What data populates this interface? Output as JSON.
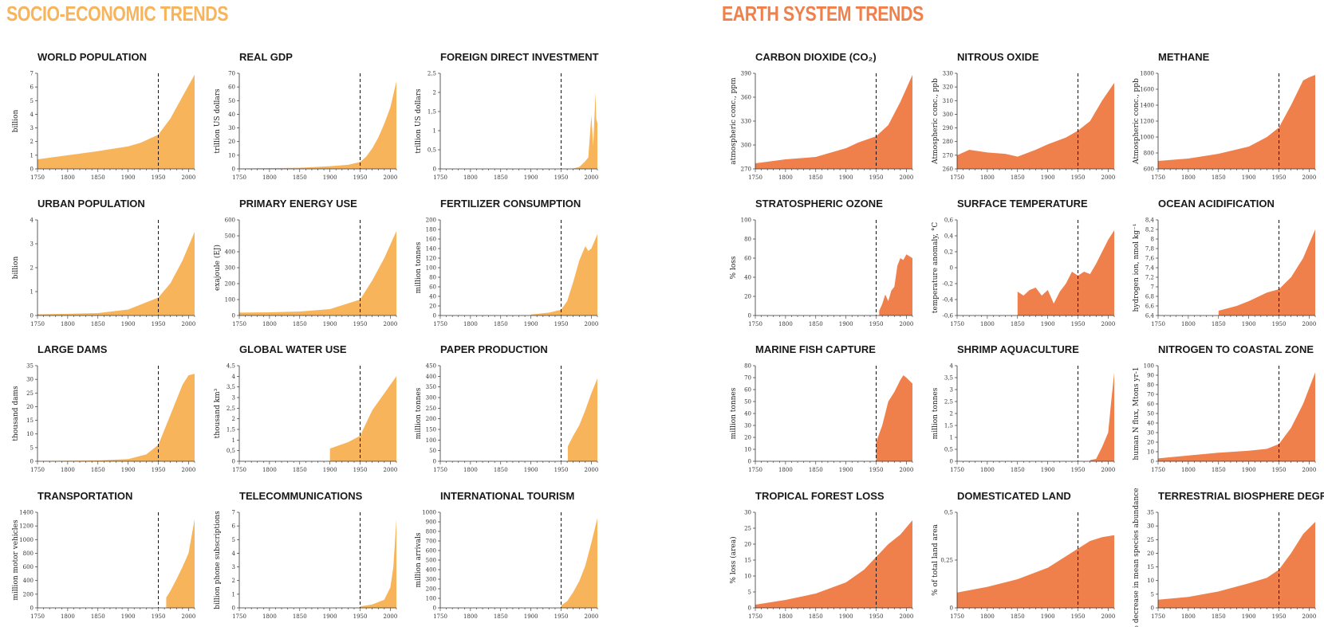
{
  "sections": {
    "socio": {
      "title": "SOCIO-ECONOMIC TRENDS",
      "color": "#F7B45A"
    },
    "earth": {
      "title": "EARTH SYSTEM TRENDS",
      "color": "#F0804B"
    }
  },
  "chart_data": [
    {
      "id": "world-population",
      "type": "area",
      "title": "WORLD POPULATION",
      "ylabel": "billion",
      "section": "socio",
      "ylim": [
        0,
        7
      ],
      "yticks": [
        "0",
        "1",
        "2",
        "3",
        "4",
        "5",
        "6",
        "7"
      ],
      "xticks": [
        1750,
        1800,
        1850,
        1900,
        1950,
        2000
      ],
      "xlim": [
        1750,
        2010
      ],
      "marker_x": 1950,
      "x": [
        1750,
        1800,
        1850,
        1900,
        1920,
        1950,
        1970,
        1990,
        2010
      ],
      "y": [
        0.7,
        1.0,
        1.3,
        1.65,
        1.9,
        2.5,
        3.7,
        5.3,
        6.9
      ]
    },
    {
      "id": "real-gdp",
      "type": "area",
      "title": "REAL GDP",
      "ylabel": "trillion US dollars",
      "section": "socio",
      "ylim": [
        0,
        70
      ],
      "yticks": [
        "0",
        "10",
        "20",
        "30",
        "40",
        "50",
        "60",
        "70"
      ],
      "xticks": [
        1750,
        1800,
        1850,
        1900,
        1950,
        2000
      ],
      "xlim": [
        1750,
        2010
      ],
      "marker_x": 1950,
      "x": [
        1750,
        1850,
        1900,
        1930,
        1950,
        1960,
        1970,
        1980,
        1990,
        2000,
        2010
      ],
      "y": [
        0.3,
        0.8,
        2,
        3,
        5,
        9,
        15,
        23,
        33,
        45,
        64
      ]
    },
    {
      "id": "foreign-direct-investment",
      "type": "area",
      "title": "FOREIGN DIRECT INVESTMENT",
      "ylabel": "trillion US dollars",
      "section": "socio",
      "ylim": [
        0,
        2.5
      ],
      "yticks": [
        "0",
        "0,5",
        "1",
        "1,5",
        "2",
        "2,5"
      ],
      "xticks": [
        1750,
        1800,
        1850,
        1900,
        1950,
        2000
      ],
      "xlim": [
        1750,
        2010
      ],
      "marker_x": 1950,
      "x": [
        1970,
        1980,
        1990,
        1995,
        2000,
        2003,
        2007,
        2008,
        2010
      ],
      "y": [
        0.01,
        0.05,
        0.2,
        0.3,
        1.4,
        0.6,
        2.0,
        1.3,
        1.2
      ]
    },
    {
      "id": "urban-population",
      "type": "area",
      "title": "URBAN POPULATION",
      "ylabel": "billion",
      "section": "socio",
      "ylim": [
        0,
        4
      ],
      "yticks": [
        "0",
        "1",
        "2",
        "3",
        "4"
      ],
      "xticks": [
        1750,
        1800,
        1850,
        1900,
        1950,
        2000
      ],
      "xlim": [
        1750,
        2010
      ],
      "marker_x": 1950,
      "x": [
        1750,
        1800,
        1850,
        1900,
        1950,
        1970,
        1990,
        2010
      ],
      "y": [
        0.05,
        0.07,
        0.1,
        0.25,
        0.75,
        1.35,
        2.3,
        3.5
      ]
    },
    {
      "id": "primary-energy-use",
      "type": "area",
      "title": "PRIMARY ENERGY USE",
      "ylabel": "exajoule (EJ)",
      "section": "socio",
      "ylim": [
        0,
        600
      ],
      "yticks": [
        "0",
        "100",
        "200",
        "300",
        "400",
        "500",
        "600"
      ],
      "xticks": [
        1750,
        1800,
        1850,
        1900,
        1950,
        2000
      ],
      "xlim": [
        1750,
        2010
      ],
      "marker_x": 1950,
      "x": [
        1750,
        1800,
        1850,
        1900,
        1950,
        1970,
        1990,
        2010
      ],
      "y": [
        18,
        20,
        25,
        40,
        100,
        220,
        360,
        530
      ]
    },
    {
      "id": "fertilizer-consumption",
      "type": "area",
      "title": "FERTILIZER CONSUMPTION",
      "ylabel": "million tonnes",
      "section": "socio",
      "ylim": [
        0,
        200
      ],
      "yticks": [
        "0",
        "20",
        "40",
        "60",
        "80",
        "100",
        "120",
        "140",
        "160",
        "180",
        "200"
      ],
      "xticks": [
        1750,
        1800,
        1850,
        1900,
        1950,
        2000
      ],
      "xlim": [
        1750,
        2010
      ],
      "marker_x": 1950,
      "x": [
        1900,
        1930,
        1950,
        1960,
        1970,
        1980,
        1990,
        1995,
        2000,
        2010
      ],
      "y": [
        2,
        6,
        12,
        30,
        70,
        115,
        145,
        135,
        140,
        170
      ]
    },
    {
      "id": "large-dams",
      "type": "area",
      "title": "LARGE DAMS",
      "ylabel": "thousand dams",
      "section": "socio",
      "ylim": [
        0,
        35
      ],
      "yticks": [
        "0",
        "5",
        "10",
        "15",
        "20",
        "25",
        "30",
        "35"
      ],
      "xticks": [
        1750,
        1800,
        1850,
        1900,
        1950,
        2000
      ],
      "xlim": [
        1750,
        2010
      ],
      "marker_x": 1950,
      "x": [
        1750,
        1850,
        1900,
        1930,
        1950,
        1970,
        1990,
        2000,
        2010
      ],
      "y": [
        0.1,
        0.3,
        0.8,
        2.5,
        6,
        17,
        28,
        31.5,
        32
      ]
    },
    {
      "id": "global-water-use",
      "type": "area",
      "title": "GLOBAL WATER USE",
      "ylabel": "thousand km³",
      "section": "socio",
      "ylim": [
        0,
        4.5
      ],
      "yticks": [
        "0",
        "0,5",
        "1",
        "1,5",
        "2",
        "2,5",
        "3",
        "3,5",
        "4",
        "4,5"
      ],
      "xticks": [
        1750,
        1800,
        1850,
        1900,
        1950,
        2000
      ],
      "xlim": [
        1750,
        2010
      ],
      "marker_x": 1950,
      "x": [
        1900,
        1930,
        1950,
        1970,
        1990,
        2010
      ],
      "y": [
        0.6,
        0.9,
        1.2,
        2.4,
        3.2,
        4.0
      ]
    },
    {
      "id": "paper-production",
      "type": "area",
      "title": "PAPER PRODUCTION",
      "ylabel": "million tonnes",
      "section": "socio",
      "ylim": [
        0,
        450
      ],
      "yticks": [
        "0",
        "50",
        "100",
        "150",
        "200",
        "250",
        "300",
        "350",
        "400",
        "450"
      ],
      "xticks": [
        1750,
        1800,
        1850,
        1900,
        1950,
        2000
      ],
      "xlim": [
        1750,
        2010
      ],
      "marker_x": 1950,
      "x": [
        1961,
        1970,
        1980,
        1990,
        2000,
        2010
      ],
      "y": [
        70,
        120,
        170,
        240,
        320,
        390
      ]
    },
    {
      "id": "transportation",
      "type": "area",
      "title": "TRANSPORTATION",
      "ylabel": "million motor vehicles",
      "section": "socio",
      "ylim": [
        0,
        1400
      ],
      "yticks": [
        "0",
        "200",
        "400",
        "600",
        "800",
        "1000",
        "1200",
        "1400"
      ],
      "xticks": [
        1750,
        1800,
        1850,
        1900,
        1950,
        2000
      ],
      "xlim": [
        1750,
        2010
      ],
      "marker_x": 1950,
      "x": [
        1963,
        1970,
        1980,
        1990,
        2000,
        2010
      ],
      "y": [
        150,
        250,
        420,
        600,
        800,
        1300
      ]
    },
    {
      "id": "telecommunications",
      "type": "area",
      "title": "TELECOMMUNICATIONS",
      "ylabel": "billion phone subscriptions",
      "section": "socio",
      "ylim": [
        0,
        7
      ],
      "yticks": [
        "0",
        "1",
        "2",
        "3",
        "4",
        "5",
        "6",
        "7"
      ],
      "xticks": [
        1750,
        1800,
        1850,
        1900,
        1950,
        2000
      ],
      "xlim": [
        1750,
        2010
      ],
      "marker_x": 1950,
      "x": [
        1950,
        1970,
        1990,
        2000,
        2005,
        2010
      ],
      "y": [
        0.1,
        0.25,
        0.6,
        1.5,
        3.0,
        6.5
      ]
    },
    {
      "id": "international-tourism",
      "type": "area",
      "title": "INTERNATIONAL TOURISM",
      "ylabel": "million arrivals",
      "section": "socio",
      "ylim": [
        0,
        1000
      ],
      "yticks": [
        "0",
        "100",
        "200",
        "300",
        "400",
        "500",
        "600",
        "700",
        "800",
        "900",
        "1000"
      ],
      "xticks": [
        1750,
        1800,
        1850,
        1900,
        1950,
        2000
      ],
      "xlim": [
        1750,
        2010
      ],
      "marker_x": 1950,
      "x": [
        1950,
        1960,
        1970,
        1980,
        1990,
        2000,
        2010
      ],
      "y": [
        25,
        70,
        165,
        280,
        440,
        680,
        940
      ]
    },
    {
      "id": "carbon-dioxide",
      "type": "area",
      "title": "CARBON DIOXIDE (CO₂)",
      "ylabel": "atmospheric conc., ppm",
      "section": "earth",
      "ylim": [
        270,
        390
      ],
      "yticks": [
        "270",
        "300",
        "330",
        "360",
        "390"
      ],
      "xticks": [
        1750,
        1800,
        1850,
        1900,
        1950,
        2000
      ],
      "xlim": [
        1750,
        2010
      ],
      "marker_x": 1950,
      "x": [
        1750,
        1800,
        1850,
        1900,
        1920,
        1950,
        1970,
        1990,
        2010
      ],
      "y": [
        277,
        282,
        285,
        296,
        303,
        311,
        325,
        354,
        388
      ]
    },
    {
      "id": "nitrous-oxide",
      "type": "area",
      "title": "NITROUS OXIDE",
      "ylabel": "Atmospheric conc., ppb",
      "section": "earth",
      "ylim": [
        260,
        330
      ],
      "yticks": [
        "260",
        "270",
        "280",
        "290",
        "300",
        "310",
        "320",
        "330"
      ],
      "xticks": [
        1750,
        1800,
        1850,
        1900,
        1950,
        2000
      ],
      "xlim": [
        1750,
        2010
      ],
      "marker_x": 1950,
      "x": [
        1750,
        1770,
        1800,
        1830,
        1850,
        1880,
        1900,
        1930,
        1950,
        1970,
        1990,
        2010
      ],
      "y": [
        270,
        274,
        272,
        271,
        269,
        274,
        278,
        283,
        288,
        295,
        310,
        323
      ]
    },
    {
      "id": "methane",
      "type": "area",
      "title": "METHANE",
      "ylabel": "Atmospheric conc., ppb",
      "section": "earth",
      "ylim": [
        600,
        1800
      ],
      "yticks": [
        "600",
        "800",
        "1000",
        "1200",
        "1400",
        "1600",
        "1800"
      ],
      "xticks": [
        1750,
        1800,
        1850,
        1900,
        1950,
        2000
      ],
      "xlim": [
        1750,
        2010
      ],
      "marker_x": 1950,
      "x": [
        1750,
        1800,
        1850,
        1900,
        1930,
        1950,
        1970,
        1990,
        2000,
        2010
      ],
      "y": [
        700,
        730,
        790,
        880,
        1000,
        1120,
        1400,
        1710,
        1750,
        1780
      ]
    },
    {
      "id": "stratospheric-ozone",
      "type": "area",
      "title": "STRATOSPHERIC OZONE",
      "ylabel": "% loss",
      "section": "earth",
      "ylim": [
        0,
        100
      ],
      "yticks": [
        "0",
        "20",
        "40",
        "60",
        "80",
        "100"
      ],
      "xticks": [
        1750,
        1800,
        1850,
        1900,
        1950,
        2000
      ],
      "xlim": [
        1750,
        2010
      ],
      "marker_x": 1950,
      "x": [
        1955,
        1960,
        1965,
        1970,
        1975,
        1980,
        1985,
        1990,
        1995,
        2000,
        2005,
        2010
      ],
      "y": [
        5,
        12,
        22,
        15,
        26,
        30,
        52,
        60,
        58,
        64,
        62,
        60
      ]
    },
    {
      "id": "surface-temperature",
      "type": "area",
      "title": "SURFACE TEMPERATURE",
      "ylabel": "temperature anomaly, °C",
      "section": "earth",
      "ylim": [
        -0.6,
        0.6
      ],
      "yticks": [
        "-0,6",
        "-0,4",
        "-0,2",
        "0",
        "0,2",
        "0,4",
        "0,6"
      ],
      "xticks": [
        1750,
        1800,
        1850,
        1900,
        1950,
        2000
      ],
      "xlim": [
        1750,
        2010
      ],
      "marker_x": 1950,
      "x": [
        1850,
        1860,
        1870,
        1880,
        1890,
        1900,
        1910,
        1920,
        1930,
        1940,
        1950,
        1960,
        1970,
        1980,
        1990,
        2000,
        2010
      ],
      "y": [
        -0.3,
        -0.35,
        -0.28,
        -0.25,
        -0.35,
        -0.28,
        -0.45,
        -0.3,
        -0.2,
        -0.05,
        -0.1,
        -0.05,
        -0.08,
        0.05,
        0.2,
        0.35,
        0.47
      ]
    },
    {
      "id": "ocean-acidification",
      "type": "area",
      "title": "OCEAN ACIDIFICATION",
      "ylabel": "hydrogen ion, nmol kg⁻¹",
      "section": "earth",
      "ylim": [
        6.4,
        8.4
      ],
      "yticks": [
        "6,4",
        "6,6",
        "6,8",
        "7",
        "7,2",
        "7,4",
        "7,6",
        "7,8",
        "8",
        "8,2",
        "8,4"
      ],
      "xticks": [
        1750,
        1800,
        1850,
        1900,
        1950,
        2000
      ],
      "xlim": [
        1750,
        2010
      ],
      "marker_x": 1950,
      "x": [
        1850,
        1880,
        1900,
        1930,
        1950,
        1970,
        1990,
        2010
      ],
      "y": [
        6.5,
        6.6,
        6.7,
        6.88,
        6.95,
        7.2,
        7.6,
        8.2
      ]
    },
    {
      "id": "marine-fish-capture",
      "type": "area",
      "title": "MARINE FISH CAPTURE",
      "ylabel": "million tonnes",
      "section": "earth",
      "ylim": [
        0,
        80
      ],
      "yticks": [
        "0",
        "10",
        "20",
        "30",
        "40",
        "50",
        "60",
        "70",
        "80"
      ],
      "xticks": [
        1750,
        1800,
        1850,
        1900,
        1950,
        2000
      ],
      "xlim": [
        1750,
        2010
      ],
      "marker_x": 1950,
      "x": [
        1950,
        1960,
        1970,
        1980,
        1990,
        1995,
        2000,
        2010
      ],
      "y": [
        16,
        30,
        50,
        58,
        68,
        72,
        70,
        65
      ]
    },
    {
      "id": "shrimp-aquaculture",
      "type": "area",
      "title": "SHRIMP AQUACULTURE",
      "ylabel": "million tonnes",
      "section": "earth",
      "ylim": [
        0,
        4
      ],
      "yticks": [
        "0",
        "0,5",
        "1",
        "1,5",
        "2",
        "2,5",
        "3",
        "3,5",
        "4"
      ],
      "xticks": [
        1750,
        1800,
        1850,
        1900,
        1950,
        2000
      ],
      "xlim": [
        1750,
        2010
      ],
      "marker_x": 1950,
      "x": [
        1970,
        1980,
        1990,
        1995,
        2000,
        2005,
        2010
      ],
      "y": [
        0.05,
        0.1,
        0.6,
        0.9,
        1.2,
        2.5,
        3.7
      ]
    },
    {
      "id": "nitrogen-to-coastal-zone",
      "type": "area",
      "title": "NITROGEN TO COASTAL ZONE",
      "ylabel": "human N flux, Mtons yr-1",
      "section": "earth",
      "ylim": [
        0,
        100
      ],
      "yticks": [
        "0",
        "10",
        "20",
        "30",
        "40",
        "50",
        "60",
        "70",
        "80",
        "90",
        "100"
      ],
      "xticks": [
        1750,
        1800,
        1850,
        1900,
        1950,
        2000
      ],
      "xlim": [
        1750,
        2010
      ],
      "marker_x": 1950,
      "x": [
        1750,
        1800,
        1850,
        1900,
        1930,
        1950,
        1970,
        1990,
        2010
      ],
      "y": [
        3,
        6,
        9,
        11,
        13,
        18,
        35,
        60,
        93
      ]
    },
    {
      "id": "tropical-forest-loss",
      "type": "area",
      "title": "TROPICAL FOREST LOSS",
      "ylabel": "% loss (area)",
      "section": "earth",
      "ylim": [
        0,
        30
      ],
      "yticks": [
        "0",
        "5",
        "10",
        "15",
        "20",
        "25",
        "30"
      ],
      "xticks": [
        1750,
        1800,
        1850,
        1900,
        1950,
        2000
      ],
      "xlim": [
        1750,
        2010
      ],
      "marker_x": 1950,
      "x": [
        1750,
        1800,
        1850,
        1900,
        1930,
        1950,
        1970,
        1990,
        2010
      ],
      "y": [
        1,
        2.5,
        4.5,
        8,
        12,
        16,
        20,
        23,
        27.5
      ]
    },
    {
      "id": "domesticated-land",
      "type": "area",
      "title": "DOMESTICATED LAND",
      "ylabel": "% of total land area",
      "section": "earth",
      "ylim": [
        0,
        0.5
      ],
      "yticks": [
        "0",
        "0,25",
        "0,5"
      ],
      "xticks": [
        1750,
        1800,
        1850,
        1900,
        1950,
        2000
      ],
      "xlim": [
        1750,
        2010
      ],
      "marker_x": 1950,
      "x": [
        1750,
        1800,
        1850,
        1900,
        1930,
        1950,
        1970,
        1990,
        2010
      ],
      "y": [
        0.08,
        0.11,
        0.15,
        0.21,
        0.27,
        0.31,
        0.35,
        0.37,
        0.38
      ]
    },
    {
      "id": "terrestrial-biosphere-degradation",
      "type": "area",
      "title": "TERRESTRIAL BIOSPHERE DEGRADATION",
      "ylabel": "% decrease in mean species abundance",
      "section": "earth",
      "ylim": [
        0,
        35
      ],
      "yticks": [
        "0",
        "5",
        "10",
        "15",
        "20",
        "25",
        "30",
        "35"
      ],
      "xticks": [
        1750,
        1800,
        1850,
        1900,
        1950,
        2000
      ],
      "xlim": [
        1750,
        2010
      ],
      "marker_x": 1950,
      "x": [
        1750,
        1800,
        1850,
        1900,
        1930,
        1950,
        1970,
        1990,
        2010
      ],
      "y": [
        3,
        4,
        6,
        9,
        11,
        14,
        20,
        27,
        31.5
      ]
    }
  ]
}
